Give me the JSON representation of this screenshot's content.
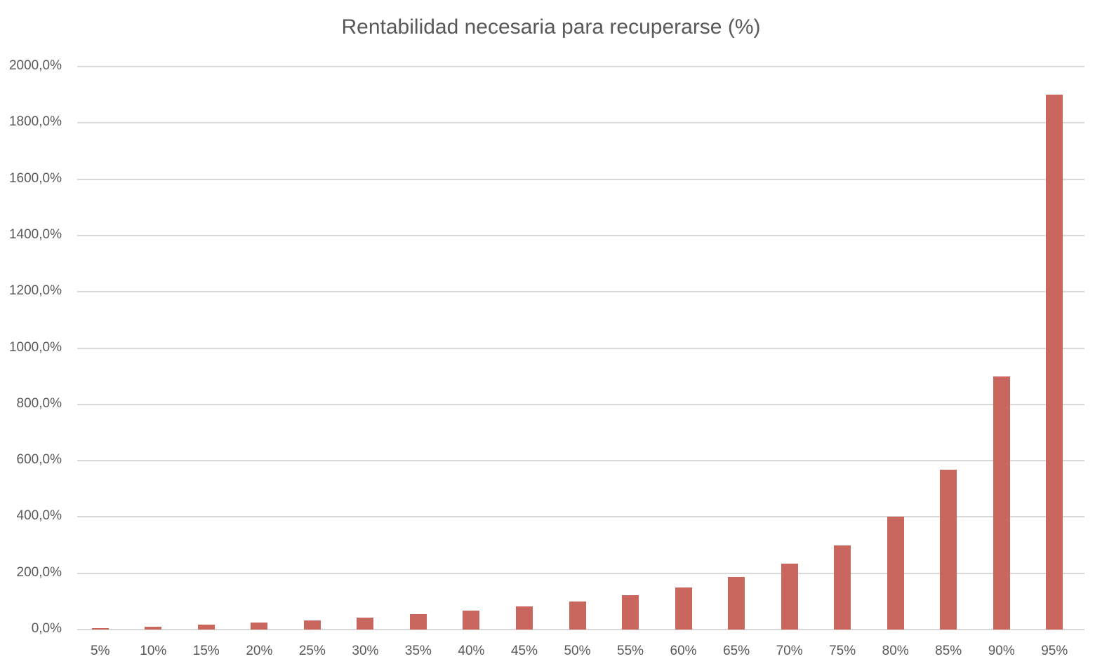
{
  "chart_data": {
    "type": "bar",
    "title": "Rentabilidad necesaria para recuperarse (%)",
    "xlabel": "",
    "ylabel": "",
    "ylim": [
      0,
      2000
    ],
    "grid": true,
    "legend": null,
    "categories": [
      "5%",
      "10%",
      "15%",
      "20%",
      "25%",
      "30%",
      "35%",
      "40%",
      "45%",
      "50%",
      "55%",
      "60%",
      "65%",
      "70%",
      "75%",
      "80%",
      "85%",
      "90%",
      "95%"
    ],
    "values": [
      5.3,
      11.1,
      17.6,
      25.0,
      33.3,
      42.9,
      53.8,
      66.7,
      81.8,
      100.0,
      122.2,
      150.0,
      185.7,
      233.3,
      300.0,
      400.0,
      566.7,
      900.0,
      1900.0
    ],
    "yticks": [
      "0,0%",
      "200,0%",
      "400,0%",
      "600,0%",
      "800,0%",
      "1000,0%",
      "1200,0%",
      "1400,0%",
      "1600,0%",
      "1800,0%",
      "2000,0%"
    ],
    "bar_color": "#c9675f",
    "grid_color": "#d9d9d9"
  }
}
